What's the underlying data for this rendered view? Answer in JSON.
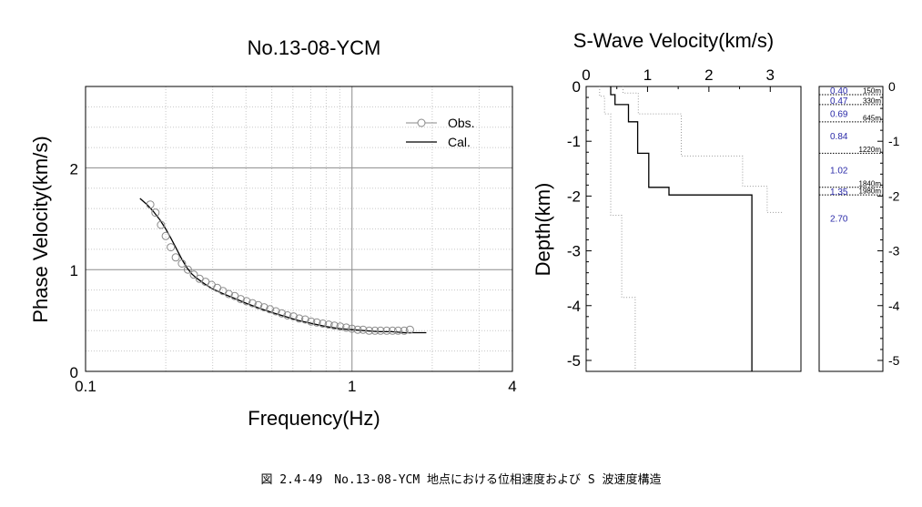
{
  "chart_data": [
    {
      "type": "scatter",
      "title": "No.13-08-YCM",
      "xlabel": "Frequency(Hz)",
      "ylabel": "Phase Velocity(km/s)",
      "x_scale": "log",
      "xlim": [
        0.1,
        4
      ],
      "ylim": [
        0,
        2.8
      ],
      "x_tick_labels": [
        "0.1",
        "1",
        "4"
      ],
      "y_tick_labels": [
        "0",
        "1",
        "2"
      ],
      "grid": true,
      "legend_position": "top-right",
      "series": [
        {
          "name": "Obs.",
          "marker": "open-circle",
          "x": [
            0.175,
            0.183,
            0.192,
            0.2,
            0.209,
            0.218,
            0.23,
            0.242,
            0.255,
            0.268,
            0.282,
            0.297,
            0.312,
            0.328,
            0.345,
            0.363,
            0.382,
            0.402,
            0.423,
            0.445,
            0.468,
            0.492,
            0.518,
            0.545,
            0.573,
            0.603,
            0.634,
            0.667,
            0.702,
            0.738,
            0.777,
            0.817,
            0.859,
            0.904,
            0.951,
            1.0,
            1.05,
            1.1,
            1.16,
            1.22,
            1.28,
            1.35,
            1.42,
            1.49,
            1.57,
            1.65
          ],
          "y": [
            1.64,
            1.56,
            1.44,
            1.33,
            1.22,
            1.12,
            1.06,
            1.0,
            0.95,
            0.91,
            0.88,
            0.85,
            0.82,
            0.79,
            0.76,
            0.74,
            0.71,
            0.69,
            0.67,
            0.65,
            0.63,
            0.61,
            0.59,
            0.57,
            0.55,
            0.54,
            0.52,
            0.51,
            0.49,
            0.48,
            0.47,
            0.46,
            0.45,
            0.44,
            0.43,
            0.42,
            0.41,
            0.41,
            0.4,
            0.4,
            0.4,
            0.4,
            0.4,
            0.4,
            0.4,
            0.41
          ]
        },
        {
          "name": "Cal.",
          "marker": "line",
          "x": [
            0.16,
            0.17,
            0.18,
            0.19,
            0.2,
            0.21,
            0.22,
            0.23,
            0.24,
            0.25,
            0.26,
            0.28,
            0.3,
            0.33,
            0.36,
            0.4,
            0.45,
            0.5,
            0.56,
            0.63,
            0.71,
            0.8,
            0.9,
            1.0,
            1.12,
            1.26,
            1.41,
            1.58,
            1.78,
            1.9
          ],
          "y": [
            1.7,
            1.64,
            1.57,
            1.49,
            1.4,
            1.3,
            1.2,
            1.1,
            1.02,
            0.96,
            0.92,
            0.86,
            0.81,
            0.76,
            0.72,
            0.67,
            0.62,
            0.58,
            0.54,
            0.5,
            0.47,
            0.44,
            0.42,
            0.41,
            0.4,
            0.39,
            0.39,
            0.38,
            0.38,
            0.38
          ]
        }
      ]
    },
    {
      "type": "line",
      "title": "S-Wave Velocity(km/s)",
      "xlabel": "",
      "ylabel": "Depth(km)",
      "xlim": [
        0,
        3.5
      ],
      "ylim": [
        0,
        -5.2
      ],
      "x_tick_labels": [
        "0",
        "1",
        "2",
        "3"
      ],
      "y_tick_labels": [
        "0",
        "-1",
        "-2",
        "-3",
        "-4",
        "-5"
      ],
      "x_axis_position": "top",
      "series": [
        {
          "style": "solid",
          "steps": [
            [
              0.4,
              0.0
            ],
            [
              0.4,
              -0.15
            ],
            [
              0.47,
              -0.15
            ],
            [
              0.47,
              -0.33
            ],
            [
              0.69,
              -0.33
            ],
            [
              0.69,
              -0.645
            ],
            [
              0.84,
              -0.645
            ],
            [
              0.84,
              -1.22
            ],
            [
              1.02,
              -1.22
            ],
            [
              1.02,
              -1.84
            ],
            [
              1.35,
              -1.84
            ],
            [
              1.35,
              -1.98
            ],
            [
              2.7,
              -1.98
            ],
            [
              2.7,
              -5.2
            ]
          ]
        },
        {
          "style": "dotted-bound",
          "steps": [
            [
              0.22,
              0.0
            ],
            [
              0.22,
              -0.18
            ],
            [
              0.3,
              -0.18
            ],
            [
              0.3,
              -0.5
            ],
            [
              0.4,
              -0.5
            ],
            [
              0.4,
              -2.35
            ],
            [
              0.58,
              -2.35
            ],
            [
              0.58,
              -3.85
            ],
            [
              0.8,
              -3.85
            ],
            [
              0.8,
              -5.2
            ]
          ]
        },
        {
          "style": "dotted-bound",
          "steps": [
            [
              0.6,
              0.0
            ],
            [
              0.6,
              -0.12
            ],
            [
              0.85,
              -0.12
            ],
            [
              0.85,
              -0.5
            ],
            [
              1.55,
              -0.5
            ],
            [
              1.55,
              -1.27
            ],
            [
              2.55,
              -1.27
            ],
            [
              2.55,
              -1.82
            ],
            [
              2.95,
              -1.82
            ],
            [
              2.95,
              -2.3
            ],
            [
              3.2,
              -2.3
            ]
          ]
        }
      ]
    },
    {
      "type": "table",
      "title": "",
      "ylim": [
        0,
        -5.2
      ],
      "y_tick_labels": [
        "0",
        "-1",
        "-2",
        "-3",
        "-4",
        "-5"
      ],
      "layers": [
        {
          "velocity": "0.40",
          "bottom_label": "150m",
          "bottom_km": -0.15,
          "mid_km": -0.07
        },
        {
          "velocity": "0.47",
          "bottom_label": "330m",
          "bottom_km": -0.33,
          "mid_km": -0.25
        },
        {
          "velocity": "0.69",
          "bottom_label": "645m",
          "bottom_km": -0.645,
          "mid_km": -0.49
        },
        {
          "velocity": "0.84",
          "bottom_label": "1220m",
          "bottom_km": -1.22,
          "mid_km": -0.9
        },
        {
          "velocity": "1.02",
          "bottom_label": "1840m",
          "bottom_km": -1.84,
          "mid_km": -1.52
        },
        {
          "velocity": "1.35",
          "bottom_label": "1980m",
          "bottom_km": -1.98,
          "mid_km": -1.91
        },
        {
          "velocity": "2.70",
          "bottom_label": "",
          "bottom_km": null,
          "mid_km": -2.4
        }
      ]
    }
  ],
  "caption": "図 2.4-49　No.13-08-YCM 地点における位相速度および S 波速度構造"
}
